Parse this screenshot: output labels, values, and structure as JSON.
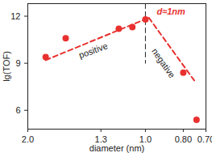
{
  "chart_data": {
    "type": "scatter",
    "x_label": "diameter (nm)",
    "y_label": "lg(TOF)",
    "log": "x",
    "xlim": [
      2.0,
      0.7
    ],
    "ylim": [
      4.8,
      12.8
    ],
    "xticks": [
      {
        "value": 2.0,
        "label": "2.0"
      },
      1.3,
      {
        "value": 1.0,
        "label": "1.0"
      },
      {
        "value": 0.8,
        "label": "0.80"
      },
      {
        "value": 0.7,
        "label": "0.70"
      }
    ],
    "yticks": [
      6,
      9,
      12
    ],
    "grid": false,
    "series": [
      {
        "type": "line",
        "line_style": "dashed",
        "color": "#e8312f",
        "x": [
          1.8,
          0.98
        ],
        "values": [
          9.2,
          11.9
        ]
      },
      {
        "type": "line",
        "line_style": "dashed",
        "color": "#e8312f",
        "x": [
          0.98,
          0.75
        ],
        "values": [
          11.9,
          7.9
        ]
      },
      {
        "type": "line",
        "line_style": "dashed",
        "color": "#222222",
        "x": [
          1.0,
          1.0
        ],
        "values": [
          12.8,
          9.0
        ]
      },
      {
        "type": "scatter",
        "marker": "circle",
        "color": "#e8312f",
        "x": [
          1.8,
          1.6,
          1.17,
          1.08,
          1.0,
          0.8,
          0.74
        ],
        "values": [
          9.4,
          10.6,
          11.2,
          11.3,
          11.8,
          8.4,
          5.4
        ]
      }
    ],
    "annotations": [
      {
        "text": "positive",
        "x": 1.36,
        "y": 9.8,
        "color": "#222222"
      },
      {
        "text": "negative",
        "x": 0.9,
        "y": 9.0,
        "color": "#222222"
      },
      {
        "text": "d≈1nm",
        "x": 0.86,
        "y": 12.3,
        "color": "#e8312f"
      }
    ]
  }
}
